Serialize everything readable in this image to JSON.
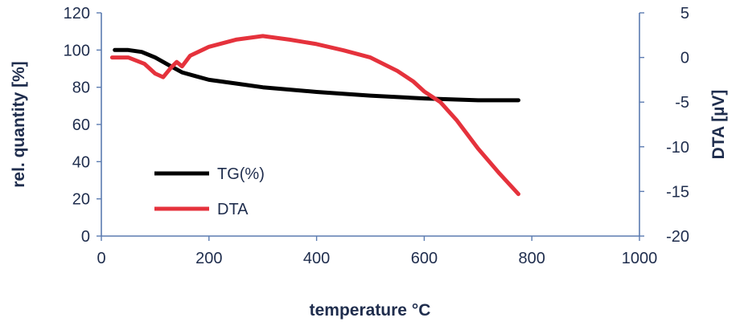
{
  "chart_data": {
    "type": "line",
    "title": "",
    "xlabel": "temperature °C",
    "ylabel": "rel. quantity [%]",
    "y2label": "DTA [µV]",
    "xlim": [
      0,
      1000
    ],
    "ylim": [
      0,
      120
    ],
    "y2lim": [
      -20,
      5
    ],
    "xticks": [
      "0",
      "200",
      "400",
      "600",
      "800",
      "1000"
    ],
    "yticks": [
      "0",
      "20",
      "40",
      "60",
      "80",
      "100",
      "120"
    ],
    "y2ticks": [
      "-20",
      "-15",
      "-10",
      "-5",
      "0",
      "5"
    ],
    "grid": false,
    "legend_position": "lower-left inside",
    "series": [
      {
        "name": "TG(%)",
        "axis": "left",
        "color": "#000000",
        "points": [
          [
            25,
            100
          ],
          [
            50,
            100
          ],
          [
            75,
            99
          ],
          [
            100,
            96
          ],
          [
            125,
            92
          ],
          [
            150,
            88
          ],
          [
            175,
            86
          ],
          [
            200,
            84
          ],
          [
            250,
            82
          ],
          [
            300,
            80
          ],
          [
            400,
            77.5
          ],
          [
            500,
            75.5
          ],
          [
            600,
            74
          ],
          [
            700,
            73
          ],
          [
            775,
            73
          ]
        ]
      },
      {
        "name": "DTA",
        "axis": "right",
        "color": "#e5323c",
        "points": [
          [
            20,
            0
          ],
          [
            50,
            0
          ],
          [
            80,
            -0.7
          ],
          [
            100,
            -1.8
          ],
          [
            115,
            -2.2
          ],
          [
            130,
            -1.1
          ],
          [
            140,
            -0.5
          ],
          [
            150,
            -1
          ],
          [
            165,
            0.2
          ],
          [
            200,
            1.2
          ],
          [
            250,
            2
          ],
          [
            300,
            2.4
          ],
          [
            350,
            2
          ],
          [
            400,
            1.5
          ],
          [
            450,
            0.8
          ],
          [
            500,
            0
          ],
          [
            550,
            -1.5
          ],
          [
            580,
            -2.7
          ],
          [
            600,
            -3.8
          ],
          [
            630,
            -5
          ],
          [
            660,
            -7
          ],
          [
            700,
            -10.2
          ],
          [
            740,
            -13
          ],
          [
            775,
            -15.3
          ]
        ]
      }
    ]
  }
}
